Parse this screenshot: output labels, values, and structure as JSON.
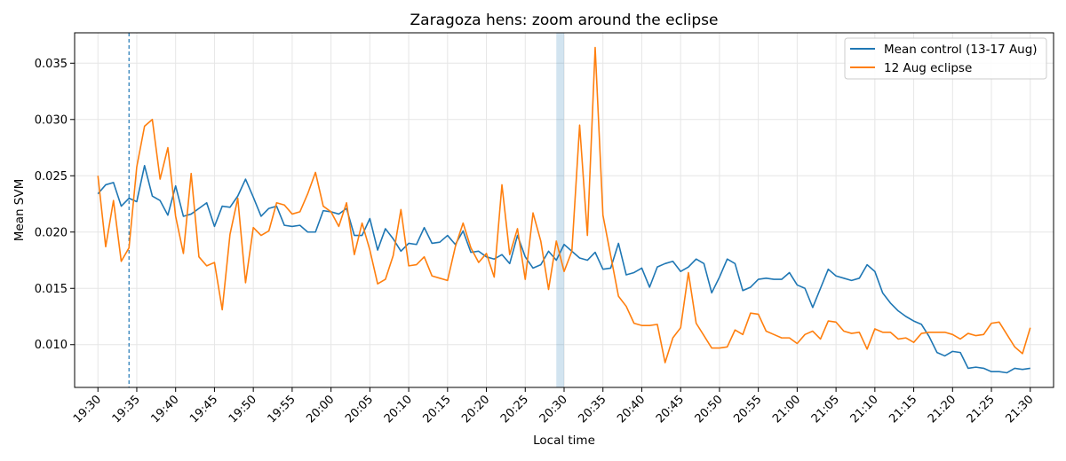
{
  "chart_data": {
    "type": "line",
    "title": "Zaragoza hens: zoom around the eclipse",
    "xlabel": "Local time",
    "ylabel": "Mean SVM",
    "x_start": "19:30",
    "x_end": "21:30",
    "x_step_minutes": 1,
    "xlim": [
      "19:27",
      "21:33"
    ],
    "ylim": [
      0.0062,
      0.0377
    ],
    "x_ticks": [
      "19:30",
      "19:35",
      "19:40",
      "19:45",
      "19:50",
      "19:55",
      "20:00",
      "20:05",
      "20:10",
      "20:15",
      "20:20",
      "20:25",
      "20:30",
      "20:35",
      "20:40",
      "20:45",
      "20:50",
      "20:55",
      "21:00",
      "21:05",
      "21:10",
      "21:15",
      "21:20",
      "21:25",
      "21:30"
    ],
    "y_ticks": [
      "0.010",
      "0.015",
      "0.020",
      "0.025",
      "0.030",
      "0.035"
    ],
    "grid": true,
    "legend_position": "top-right",
    "vline": {
      "time": "19:34",
      "style": "dashed",
      "color": "#1f77b4"
    },
    "shaded_span": {
      "from": "20:29",
      "to": "20:30",
      "color": "#1f77b4"
    },
    "series": [
      {
        "name": "Mean control (13-17 Aug)",
        "color": "#1f77b4",
        "values": [
          0.0234,
          0.0242,
          0.0244,
          0.0223,
          0.023,
          0.0227,
          0.0259,
          0.0232,
          0.0228,
          0.0215,
          0.0241,
          0.0214,
          0.0216,
          0.0221,
          0.0226,
          0.0205,
          0.0223,
          0.0222,
          0.0232,
          0.0247,
          0.0231,
          0.0214,
          0.0221,
          0.0223,
          0.0206,
          0.0205,
          0.0206,
          0.02,
          0.02,
          0.0219,
          0.0218,
          0.0216,
          0.0221,
          0.0197,
          0.0197,
          0.0212,
          0.0184,
          0.0203,
          0.0194,
          0.0183,
          0.019,
          0.0189,
          0.0204,
          0.019,
          0.0191,
          0.0197,
          0.0189,
          0.0201,
          0.0182,
          0.0183,
          0.0178,
          0.0176,
          0.018,
          0.0172,
          0.0197,
          0.0178,
          0.0168,
          0.0171,
          0.0183,
          0.0175,
          0.0189,
          0.0183,
          0.0177,
          0.0175,
          0.0182,
          0.0167,
          0.0168,
          0.019,
          0.0162,
          0.0164,
          0.0168,
          0.0151,
          0.0169,
          0.0172,
          0.0174,
          0.0165,
          0.0169,
          0.0176,
          0.0172,
          0.0146,
          0.016,
          0.0176,
          0.0172,
          0.0148,
          0.0151,
          0.0158,
          0.0159,
          0.0158,
          0.0158,
          0.0164,
          0.0153,
          0.015,
          0.0133,
          0.015,
          0.0167,
          0.0161,
          0.0159,
          0.0157,
          0.0159,
          0.0171,
          0.0165,
          0.0146,
          0.0137,
          0.013,
          0.0125,
          0.0121,
          0.0118,
          0.0107,
          0.0093,
          0.009,
          0.0094,
          0.0093,
          0.0079,
          0.008,
          0.0079,
          0.0076,
          0.0076,
          0.0075,
          0.0079,
          0.0078,
          0.0079
        ]
      },
      {
        "name": "12 Aug eclipse",
        "color": "#ff7f0e",
        "values": [
          0.025,
          0.0187,
          0.0228,
          0.0174,
          0.0186,
          0.0258,
          0.0294,
          0.03,
          0.0247,
          0.0275,
          0.0214,
          0.0181,
          0.0252,
          0.0178,
          0.017,
          0.0173,
          0.0131,
          0.0198,
          0.023,
          0.0155,
          0.0204,
          0.0197,
          0.0201,
          0.0226,
          0.0224,
          0.0216,
          0.0218,
          0.0234,
          0.0253,
          0.0223,
          0.0218,
          0.0205,
          0.0226,
          0.018,
          0.0208,
          0.0184,
          0.0154,
          0.0158,
          0.0179,
          0.022,
          0.017,
          0.0171,
          0.0178,
          0.0161,
          0.0159,
          0.0157,
          0.0187,
          0.0208,
          0.0186,
          0.0173,
          0.0181,
          0.016,
          0.0242,
          0.018,
          0.0203,
          0.0158,
          0.0217,
          0.0192,
          0.0149,
          0.0192,
          0.0165,
          0.0183,
          0.0295,
          0.0197,
          0.0364,
          0.0215,
          0.0179,
          0.0143,
          0.0134,
          0.0119,
          0.0117,
          0.0117,
          0.0118,
          0.0084,
          0.0106,
          0.0115,
          0.0164,
          0.0119,
          0.0108,
          0.0097,
          0.0097,
          0.0098,
          0.0113,
          0.0109,
          0.0128,
          0.0127,
          0.0112,
          0.0109,
          0.0106,
          0.0106,
          0.0101,
          0.0109,
          0.0112,
          0.0105,
          0.0121,
          0.012,
          0.0112,
          0.011,
          0.0111,
          0.0096,
          0.0114,
          0.0111,
          0.0111,
          0.0105,
          0.0106,
          0.0102,
          0.011,
          0.0111,
          0.0111,
          0.0111,
          0.0109,
          0.0105,
          0.011,
          0.0108,
          0.0109,
          0.0119,
          0.012,
          0.0109,
          0.0098,
          0.0092,
          0.0115
        ]
      }
    ]
  }
}
